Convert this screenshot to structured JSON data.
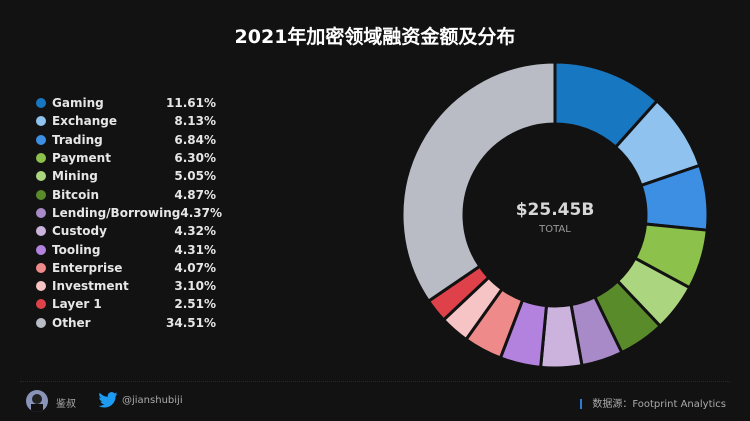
{
  "chart_data": {
    "type": "pie",
    "title": "2021年加密领域融资金额及分布",
    "center_value": "$25.45B",
    "center_label": "TOTAL",
    "unit": "%",
    "legend_position": "left",
    "categories": [
      "Gaming",
      "Exchange",
      "Trading",
      "Payment",
      "Mining",
      "Bitcoin",
      "Lending/Borrowing",
      "Custody",
      "Tooling",
      "Enterprise",
      "Investment",
      "Layer 1",
      "Other"
    ],
    "values": [
      11.61,
      8.13,
      6.84,
      6.3,
      5.05,
      4.87,
      4.37,
      4.32,
      4.31,
      4.07,
      3.1,
      2.51,
      34.51
    ],
    "labels": [
      "11.61%",
      "8.13%",
      "6.84%",
      "6.30%",
      "5.05%",
      "4.87%",
      "4.37%",
      "4.32%",
      "4.31%",
      "4.07%",
      "3.10%",
      "2.51%",
      "34.51%"
    ],
    "colors": [
      "#1777c0",
      "#8fc2ee",
      "#3d8fe3",
      "#8cc14c",
      "#acd580",
      "#5a8b2b",
      "#a98ac9",
      "#cbb3de",
      "#b382de",
      "#ef8a8a",
      "#f6c4c4",
      "#de4149",
      "#b9bcc5"
    ]
  },
  "footer": {
    "author": "鉴叔",
    "twitter_handle": "@jianshubiji",
    "source": "数据源：Footprint  Analytics"
  }
}
